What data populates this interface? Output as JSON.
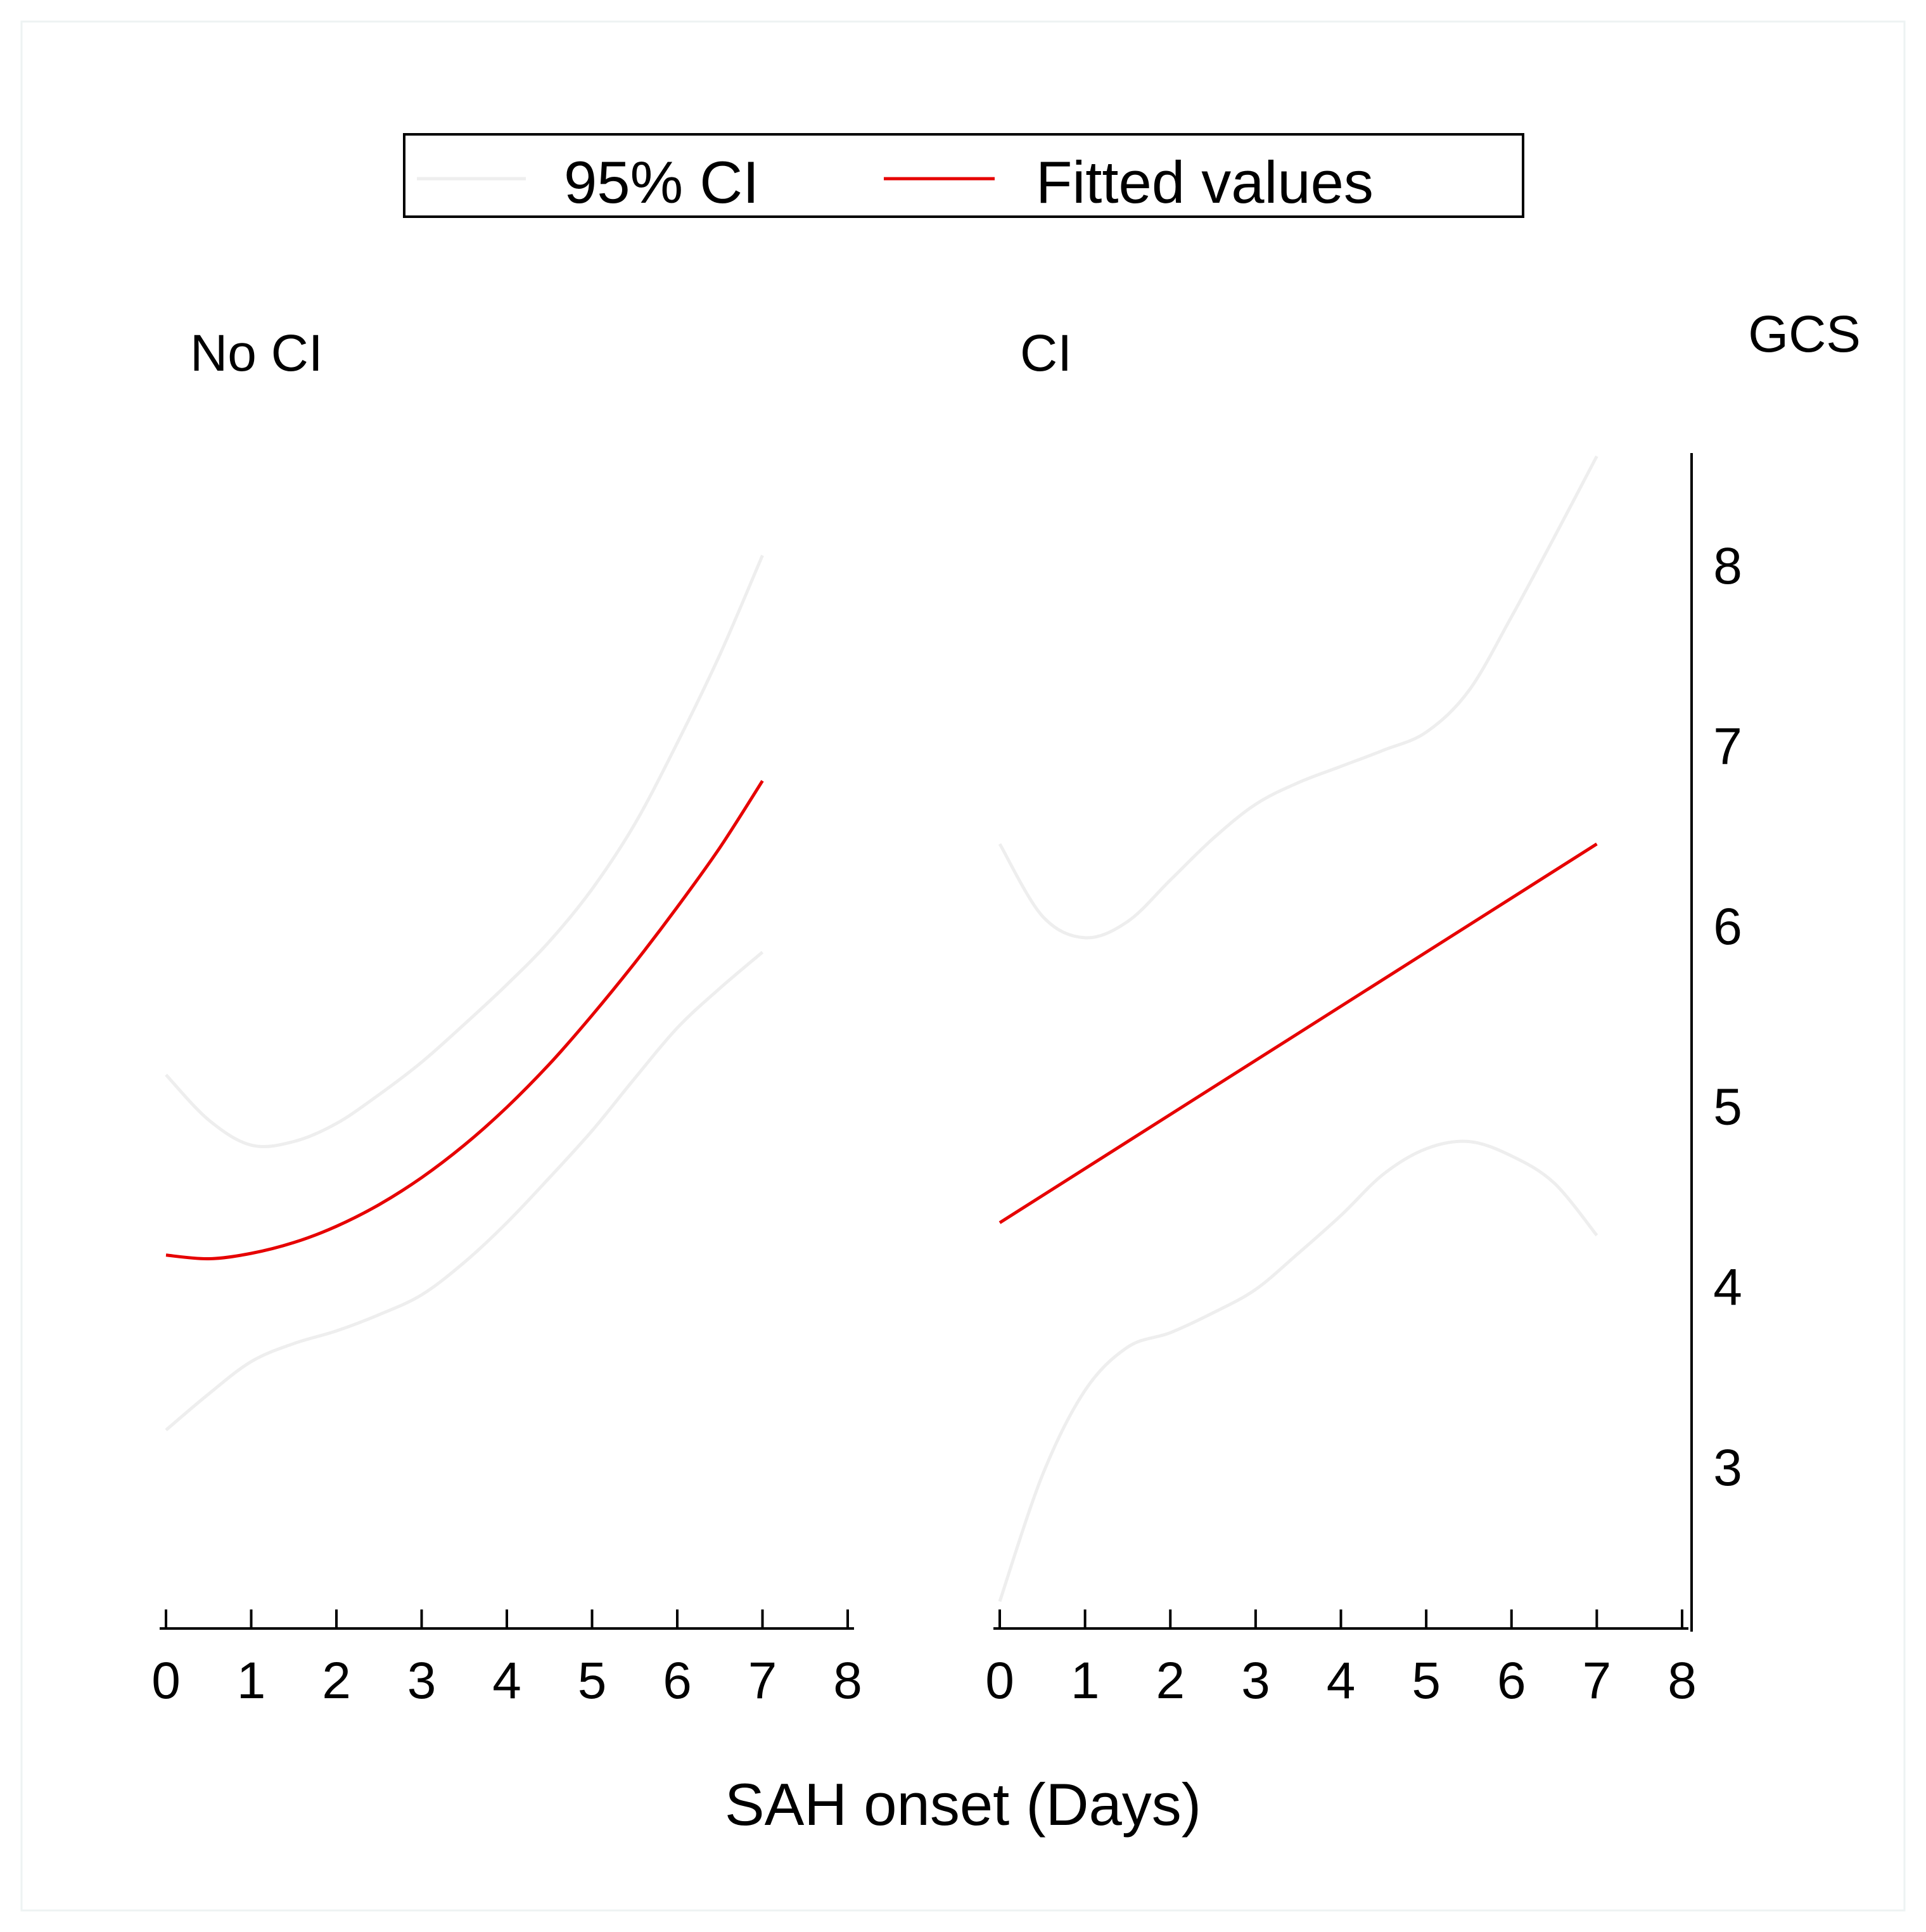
{
  "legend": {
    "items": [
      {
        "label": "95% CI",
        "color": "#eeeeee"
      },
      {
        "label": "Fitted values",
        "color": "#e60000"
      }
    ]
  },
  "y_axis": {
    "label": "GCS"
  },
  "x_axis": {
    "label": "SAH onset (Days)"
  },
  "chart_data": {
    "type": "line",
    "xlabel": "SAH onset (Days)",
    "ylabel": "GCS",
    "xlim": [
      0,
      8
    ],
    "ylim": [
      2.1,
      8.6
    ],
    "x_ticks": [
      0,
      1,
      2,
      3,
      4,
      5,
      6,
      7,
      8
    ],
    "y_ticks": [
      3,
      4,
      5,
      6,
      7,
      8
    ],
    "grid": false,
    "legend_position": "top-center",
    "panels": [
      {
        "title": "No CI",
        "series": [
          {
            "name": "Fitted values",
            "color": "#e60000",
            "x": [
              0,
              0.5,
              1,
              1.5,
              2,
              2.5,
              3,
              3.5,
              4,
              4.5,
              5,
              5.5,
              6,
              6.5,
              7
            ],
            "y": [
              4.17,
              4.15,
              4.18,
              4.24,
              4.33,
              4.45,
              4.6,
              4.78,
              4.99,
              5.23,
              5.5,
              5.79,
              6.1,
              6.43,
              6.8
            ]
          },
          {
            "name": "95% CI",
            "color": "#eeeeee",
            "x": [
              0,
              0.5,
              1,
              1.5,
              2,
              2.5,
              3,
              3.5,
              4,
              4.5,
              5,
              5.5,
              6,
              6.5,
              7
            ],
            "upper": [
              5.17,
              4.92,
              4.78,
              4.8,
              4.9,
              5.06,
              5.24,
              5.45,
              5.67,
              5.91,
              6.2,
              6.56,
              7.01,
              7.5,
              8.05
            ],
            "lower": [
              3.2,
              3.4,
              3.58,
              3.68,
              3.75,
              3.84,
              3.95,
              4.13,
              4.35,
              4.6,
              4.86,
              5.15,
              5.43,
              5.65,
              5.85
            ]
          }
        ]
      },
      {
        "title": "CI",
        "series": [
          {
            "name": "Fitted values",
            "color": "#e60000",
            "x": [
              0,
              7
            ],
            "y": [
              4.35,
              6.45
            ]
          },
          {
            "name": "95% CI",
            "color": "#eeeeee",
            "x": [
              0,
              0.5,
              1,
              1.5,
              2,
              2.5,
              3,
              3.5,
              4,
              4.5,
              5,
              5.5,
              6,
              6.5,
              7
            ],
            "upper": [
              6.45,
              6.05,
              5.93,
              6.02,
              6.25,
              6.48,
              6.67,
              6.79,
              6.88,
              6.97,
              7.07,
              7.3,
              7.71,
              8.15,
              8.6
            ],
            "lower": [
              2.25,
              2.95,
              3.42,
              3.66,
              3.74,
              3.85,
              3.98,
              4.18,
              4.39,
              4.62,
              4.76,
              4.8,
              4.72,
              4.57,
              4.28
            ]
          }
        ]
      }
    ]
  }
}
